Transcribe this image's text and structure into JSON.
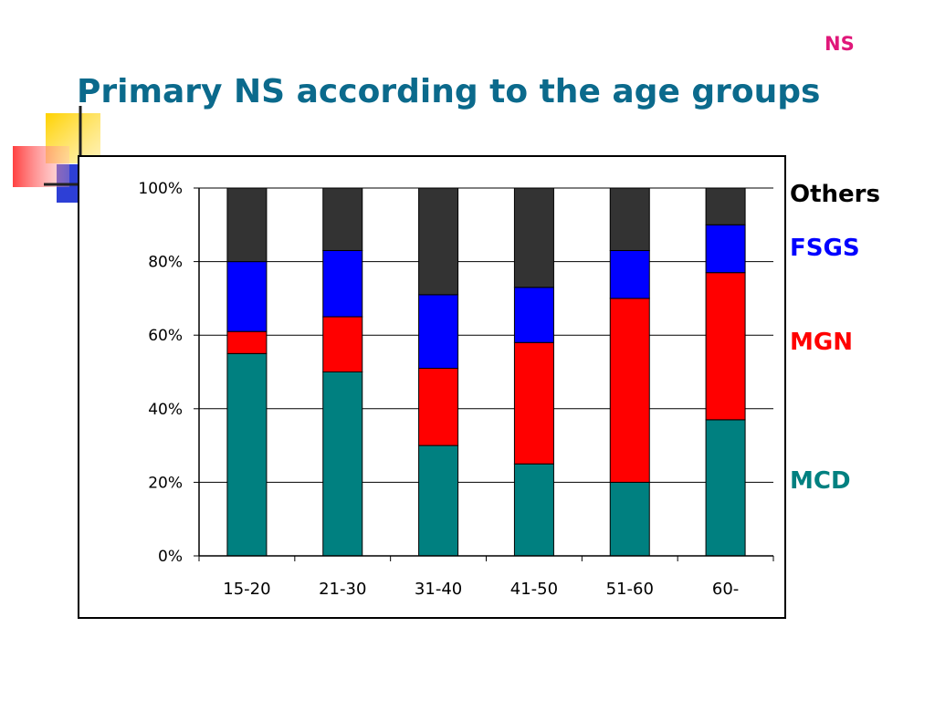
{
  "slide": {
    "tag": "NS",
    "title": "Primary NS according to the age groups",
    "colors": {
      "title": "#0b6a8c",
      "tag": "#e0187a"
    }
  },
  "chart_data": {
    "type": "bar",
    "stacked": true,
    "categories": [
      "15-20",
      "21-30",
      "31-40",
      "41-50",
      "51-60",
      "60-"
    ],
    "series": [
      {
        "name": "MCD",
        "color": "#008080",
        "values": [
          55,
          50,
          30,
          25,
          20,
          37
        ]
      },
      {
        "name": "MGN",
        "color": "#ff0000",
        "values": [
          6,
          15,
          21,
          33,
          50,
          40
        ]
      },
      {
        "name": "FSGS",
        "color": "#0000ff",
        "values": [
          19,
          18,
          20,
          15,
          13,
          13
        ]
      },
      {
        "name": "Others",
        "color": "#333333",
        "values": [
          20,
          17,
          29,
          27,
          17,
          10
        ]
      }
    ],
    "yticks": [
      "0%",
      "20%",
      "40%",
      "60%",
      "80%",
      "100%"
    ],
    "ylim": [
      0,
      100
    ],
    "grid": true,
    "legend_placement": "right"
  }
}
